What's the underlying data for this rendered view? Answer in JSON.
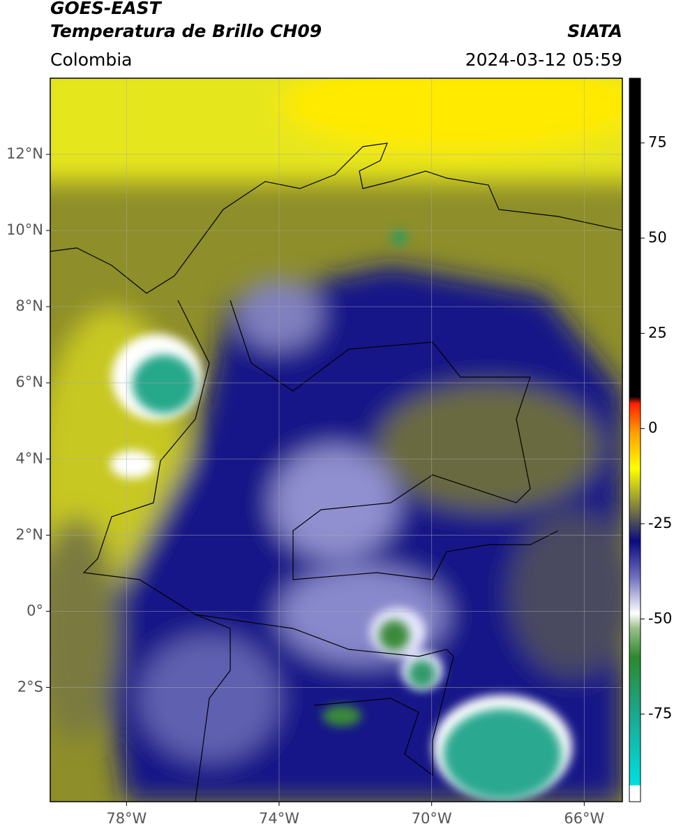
{
  "header": {
    "satellite": "GOES-EAST",
    "product": "Temperatura de Brillo CH09",
    "agency": "SIATA",
    "region": "Colombia",
    "datetime": "2024-03-12 05:59"
  },
  "map": {
    "xlim": [
      -80,
      -65
    ],
    "ylim": [
      -5,
      14
    ],
    "xticks": [
      {
        "value": -78,
        "label": "78°W"
      },
      {
        "value": -74,
        "label": "74°W"
      },
      {
        "value": -70,
        "label": "70°W"
      },
      {
        "value": -66,
        "label": "66°W"
      }
    ],
    "yticks": [
      {
        "value": 12,
        "label": "12°N"
      },
      {
        "value": 10,
        "label": "10°N"
      },
      {
        "value": 8,
        "label": "8°N"
      },
      {
        "value": 6,
        "label": "6°N"
      },
      {
        "value": 4,
        "label": "4°N"
      },
      {
        "value": 2,
        "label": "2°N"
      },
      {
        "value": 0,
        "label": "0°"
      },
      {
        "value": -2,
        "label": "2°S"
      }
    ],
    "grid": true
  },
  "colorbar": {
    "clim": [
      -98,
      92
    ],
    "ticks": [
      75,
      50,
      25,
      0,
      -25,
      -50,
      -75
    ]
  }
}
